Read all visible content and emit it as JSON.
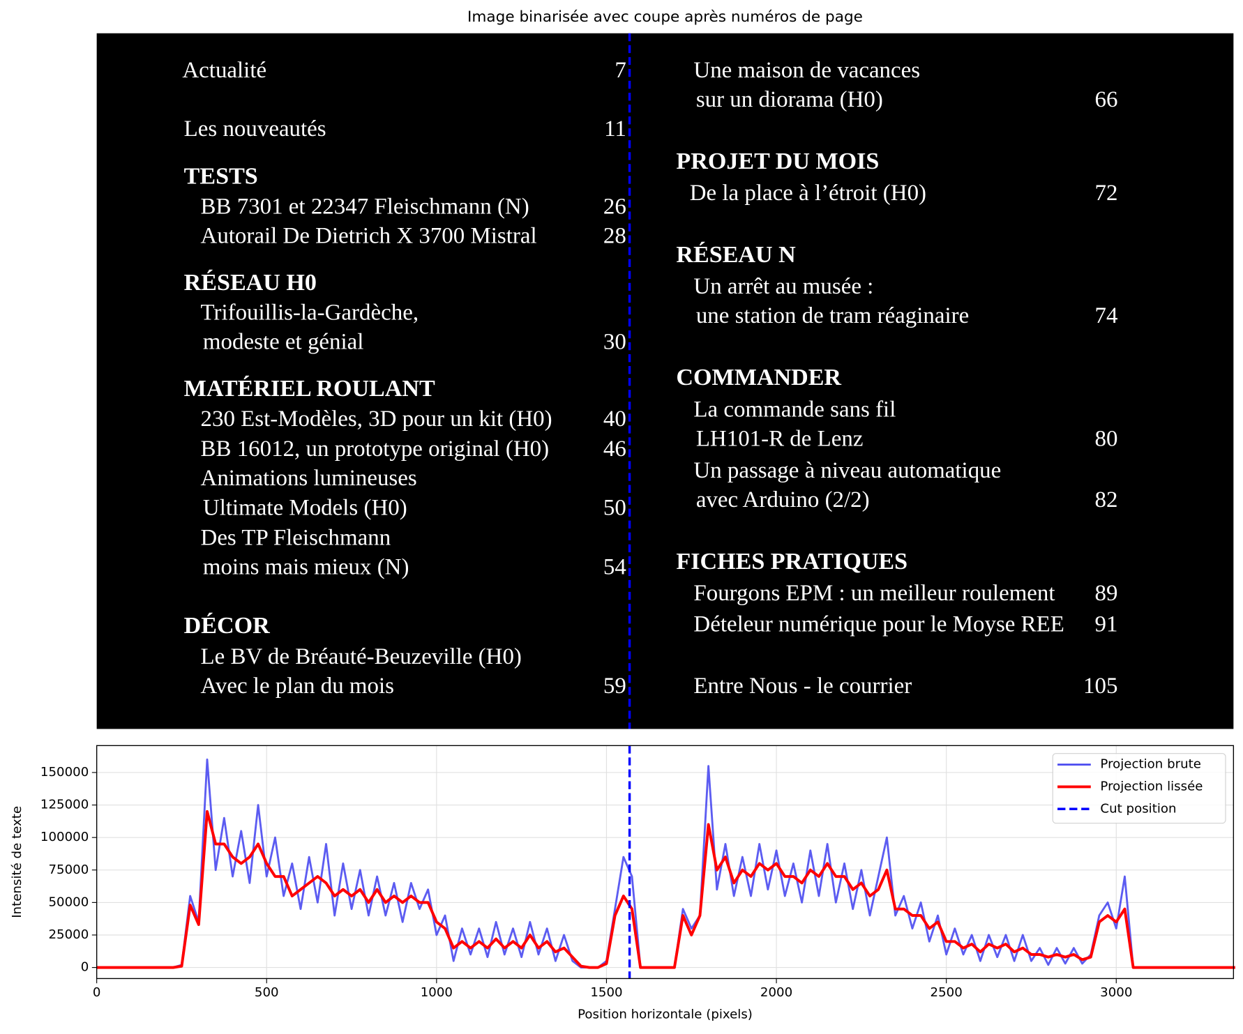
{
  "title": "Image binarisée avec coupe après numéros de page",
  "toc": {
    "left": [
      {
        "text": "Actualité",
        "page": 7
      },
      {
        "text": "Les nouveautés",
        "page": 11
      },
      {
        "text": "TESTS",
        "heading": true
      },
      {
        "text": "BB 7301 et 22347 Fleischmann (N)",
        "page": 26
      },
      {
        "text": "Autorail De Dietrich X 3700 Mistral",
        "page": 28
      },
      {
        "text": "RÉSEAU H0",
        "heading": true
      },
      {
        "text": "Trifouillis-la-Gardèche,"
      },
      {
        "text": "modeste et génial",
        "page": 30
      },
      {
        "text": "MATÉRIEL ROULANT",
        "heading": true
      },
      {
        "text": "230 Est-Modèles, 3D pour un kit (H0)",
        "page": 40
      },
      {
        "text": "BB 16012, un prototype original (H0)",
        "page": 46
      },
      {
        "text": "Animations lumineuses"
      },
      {
        "text": "Ultimate Models (H0)",
        "page": 50
      },
      {
        "text": "Des TP Fleischmann"
      },
      {
        "text": "moins mais mieux (N)",
        "page": 54
      },
      {
        "text": "DÉCOR",
        "heading": true
      },
      {
        "text": "Le BV de Bréauté-Beuzeville (H0)"
      },
      {
        "text": "Avec le plan du mois",
        "page": 59
      }
    ],
    "right": [
      {
        "text": "Une maison de vacances"
      },
      {
        "text": "sur un diorama (H0)",
        "page": 66
      },
      {
        "text": "PROJET DU MOIS",
        "heading": true
      },
      {
        "text": "De la place à l’étroit (H0)",
        "page": 72
      },
      {
        "text": "RÉSEAU N",
        "heading": true
      },
      {
        "text": "Un arrêt au musée :"
      },
      {
        "text": "une station de tram réaginaire",
        "page": 74
      },
      {
        "text": "COMMANDER",
        "heading": true
      },
      {
        "text": "La commande sans fil"
      },
      {
        "text": "LH101-R de Lenz",
        "page": 80
      },
      {
        "text": "Un passage à niveau automatique"
      },
      {
        "text": "avec Arduino (2/2)",
        "page": 82
      },
      {
        "text": "FICHES PRATIQUES",
        "heading": true
      },
      {
        "text": "Fourgons EPM : un meilleur roulement",
        "page": 89
      },
      {
        "text": "Dételeur numérique pour le Moyse REE",
        "page": 91
      },
      {
        "text": "Entre Nous - le courrier",
        "page": 105
      }
    ]
  },
  "chart_data": {
    "type": "line",
    "x_label": "Position horizontale (pixels)",
    "y_label": "Intensité de texte",
    "xlim": [
      0,
      3345
    ],
    "ylim": [
      -8500,
      170700
    ],
    "xticks": [
      0,
      500,
      1000,
      1500,
      2000,
      2500,
      3000
    ],
    "yticks": [
      0,
      25000,
      50000,
      75000,
      100000,
      125000,
      150000
    ],
    "grid": true,
    "legend": "upper right",
    "x": [
      0,
      25,
      50,
      75,
      100,
      125,
      150,
      175,
      200,
      225,
      250,
      275,
      300,
      325,
      350,
      375,
      400,
      425,
      450,
      475,
      500,
      525,
      550,
      575,
      600,
      625,
      650,
      675,
      700,
      725,
      750,
      775,
      800,
      825,
      850,
      875,
      900,
      925,
      950,
      975,
      1000,
      1025,
      1050,
      1075,
      1100,
      1125,
      1150,
      1175,
      1200,
      1225,
      1250,
      1275,
      1300,
      1325,
      1350,
      1375,
      1400,
      1425,
      1450,
      1475,
      1500,
      1525,
      1550,
      1575,
      1600,
      1625,
      1650,
      1675,
      1700,
      1725,
      1750,
      1775,
      1800,
      1825,
      1850,
      1875,
      1900,
      1925,
      1950,
      1975,
      2000,
      2025,
      2050,
      2075,
      2100,
      2125,
      2150,
      2175,
      2200,
      2225,
      2250,
      2275,
      2300,
      2325,
      2350,
      2375,
      2400,
      2425,
      2450,
      2475,
      2500,
      2525,
      2550,
      2575,
      2600,
      2625,
      2650,
      2675,
      2700,
      2725,
      2750,
      2775,
      2800,
      2825,
      2850,
      2875,
      2900,
      2925,
      2950,
      2975,
      3000,
      3025,
      3050,
      3075,
      3100,
      3125,
      3150,
      3175,
      3200,
      3225,
      3250,
      3275,
      3300,
      3325,
      3350
    ],
    "series": [
      {
        "name": "Projection brute",
        "color": "#4a4af0",
        "width": 2.5,
        "values": [
          0,
          0,
          0,
          0,
          0,
          0,
          0,
          0,
          0,
          0,
          2000,
          55000,
          35000,
          160000,
          75000,
          115000,
          70000,
          105000,
          65000,
          125000,
          70000,
          100000,
          55000,
          80000,
          45000,
          85000,
          50000,
          95000,
          40000,
          80000,
          45000,
          75000,
          40000,
          70000,
          40000,
          65000,
          35000,
          65000,
          45000,
          60000,
          25000,
          40000,
          5000,
          30000,
          10000,
          30000,
          8000,
          35000,
          10000,
          30000,
          8000,
          35000,
          10000,
          30000,
          5000,
          25000,
          5000,
          0,
          0,
          0,
          5000,
          45000,
          85000,
          70000,
          0,
          0,
          0,
          0,
          0,
          45000,
          30000,
          40000,
          155000,
          60000,
          95000,
          55000,
          85000,
          55000,
          95000,
          60000,
          90000,
          55000,
          80000,
          50000,
          90000,
          55000,
          95000,
          50000,
          80000,
          45000,
          75000,
          40000,
          70000,
          100000,
          40000,
          55000,
          30000,
          50000,
          20000,
          40000,
          10000,
          30000,
          10000,
          25000,
          5000,
          25000,
          8000,
          25000,
          5000,
          25000,
          5000,
          15000,
          2000,
          15000,
          3000,
          15000,
          3000,
          10000,
          40000,
          50000,
          30000,
          70000,
          0,
          0,
          0,
          0,
          0,
          0,
          0,
          0,
          0,
          0,
          0,
          0,
          0
        ]
      },
      {
        "name": "Projection lissée",
        "color": "#ff0000",
        "width": 3.5,
        "values": [
          0,
          0,
          0,
          0,
          0,
          0,
          0,
          0,
          0,
          0,
          1000,
          48000,
          33000,
          120000,
          95000,
          95000,
          85000,
          80000,
          85000,
          95000,
          80000,
          70000,
          70000,
          55000,
          60000,
          65000,
          70000,
          65000,
          55000,
          60000,
          55000,
          60000,
          50000,
          60000,
          50000,
          55000,
          50000,
          55000,
          50000,
          50000,
          35000,
          30000,
          15000,
          20000,
          15000,
          20000,
          15000,
          22000,
          15000,
          20000,
          15000,
          25000,
          15000,
          20000,
          12000,
          15000,
          8000,
          1000,
          0,
          0,
          3000,
          40000,
          55000,
          45000,
          0,
          0,
          0,
          0,
          0,
          40000,
          25000,
          40000,
          110000,
          75000,
          85000,
          65000,
          75000,
          70000,
          80000,
          75000,
          80000,
          70000,
          70000,
          65000,
          75000,
          70000,
          80000,
          70000,
          70000,
          60000,
          65000,
          55000,
          60000,
          75000,
          45000,
          45000,
          40000,
          40000,
          30000,
          35000,
          20000,
          20000,
          15000,
          18000,
          12000,
          18000,
          15000,
          18000,
          12000,
          15000,
          10000,
          10000,
          8000,
          10000,
          8000,
          10000,
          6000,
          8000,
          35000,
          40000,
          35000,
          45000,
          0,
          0,
          0,
          0,
          0,
          0,
          0,
          0,
          0,
          0,
          0,
          0,
          0
        ]
      }
    ],
    "vlines": [
      {
        "name": "Cut position",
        "x": 1568,
        "color": "#0000ff"
      }
    ]
  }
}
